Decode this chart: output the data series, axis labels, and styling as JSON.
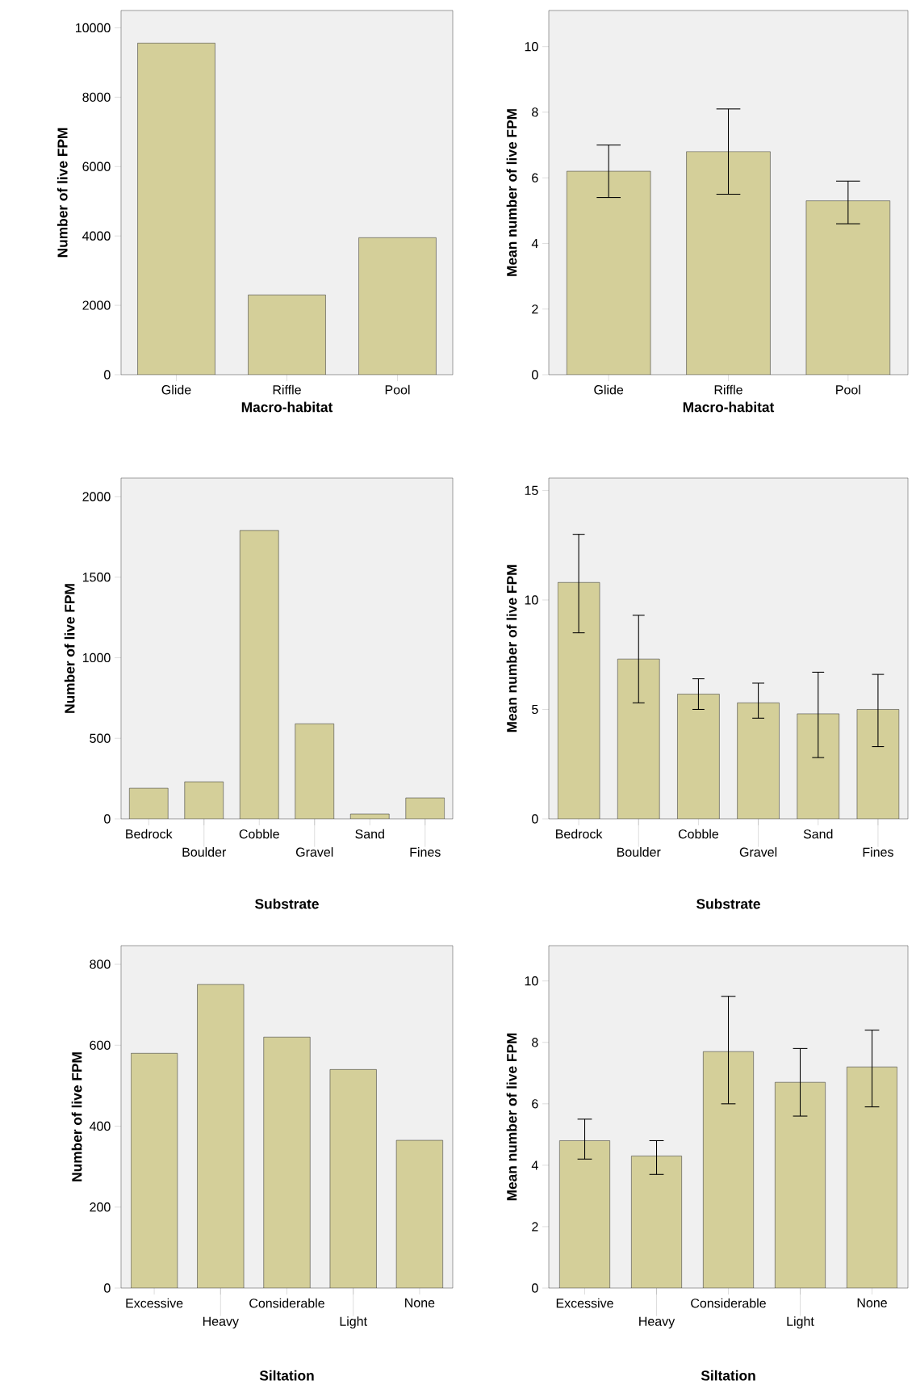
{
  "chart_data": [
    {
      "type": "bar",
      "categories": [
        "Glide",
        "Riffle",
        "Pool"
      ],
      "values": [
        9560,
        2300,
        3950
      ],
      "color": "#d4cf99",
      "ylim": [
        0,
        10500
      ],
      "yticks": [
        0,
        2000,
        4000,
        6000,
        8000,
        10000
      ],
      "xlabel": "Macro-habitat",
      "ylabel": "Number of live FPM"
    },
    {
      "type": "bar",
      "categories": [
        "Glide",
        "Riffle",
        "Pool"
      ],
      "values": [
        6.2,
        6.8,
        5.3
      ],
      "errors": [
        [
          5.4,
          7.0
        ],
        [
          5.5,
          8.1
        ],
        [
          4.6,
          5.9
        ]
      ],
      "color": "#d4cf99",
      "ylim": [
        0,
        11.1
      ],
      "yticks": [
        0,
        2,
        4,
        6,
        8,
        10
      ],
      "xlabel": "Macro-habitat",
      "ylabel": "Mean number of live FPM"
    },
    {
      "type": "bar",
      "categories": [
        "Bedrock",
        "Boulder",
        "Cobble",
        "Gravel",
        "Sand",
        "Fines"
      ],
      "values": [
        190,
        230,
        1790,
        590,
        30,
        130
      ],
      "color": "#d4cf99",
      "ylim": [
        0,
        2115
      ],
      "yticks": [
        0,
        500,
        1000,
        1500,
        2000
      ],
      "xlabel": "Substrate",
      "ylabel": "Number of live FPM"
    },
    {
      "type": "bar",
      "categories": [
        "Bedrock",
        "Boulder",
        "Cobble",
        "Gravel",
        "Sand",
        "Fines"
      ],
      "values": [
        10.8,
        7.3,
        5.7,
        5.3,
        4.8,
        5.0
      ],
      "errors": [
        [
          8.5,
          13.0
        ],
        [
          5.3,
          9.3
        ],
        [
          5.0,
          6.4
        ],
        [
          4.6,
          6.2
        ],
        [
          2.8,
          6.7
        ],
        [
          3.3,
          6.6
        ]
      ],
      "color": "#d4cf99",
      "ylim": [
        0,
        15.57
      ],
      "yticks": [
        0,
        5,
        10,
        15
      ],
      "xlabel": "Substrate",
      "ylabel": "Mean number of live FPM"
    },
    {
      "type": "bar",
      "categories": [
        "Excessive",
        "Heavy",
        "Considerable",
        "Light",
        "None"
      ],
      "values": [
        580,
        750,
        620,
        540,
        365
      ],
      "color": "#d4cf99",
      "ylim": [
        0,
        846
      ],
      "yticks": [
        0,
        200,
        400,
        600,
        800
      ],
      "xlabel": "Siltation",
      "ylabel": "Number of live FPM"
    },
    {
      "type": "bar",
      "categories": [
        "Excessive",
        "Heavy",
        "Considerable",
        "Light",
        "None"
      ],
      "values": [
        4.8,
        4.3,
        7.7,
        6.7,
        7.2
      ],
      "errors": [
        [
          4.2,
          5.5
        ],
        [
          3.7,
          4.8
        ],
        [
          6.0,
          9.5
        ],
        [
          5.6,
          7.8
        ],
        [
          5.9,
          8.4
        ]
      ],
      "color": "#d4cf99",
      "ylim": [
        0,
        11.15
      ],
      "yticks": [
        0,
        2,
        4,
        6,
        8,
        10
      ],
      "xlabel": "Siltation",
      "ylabel": "Mean number of live FPM"
    }
  ]
}
